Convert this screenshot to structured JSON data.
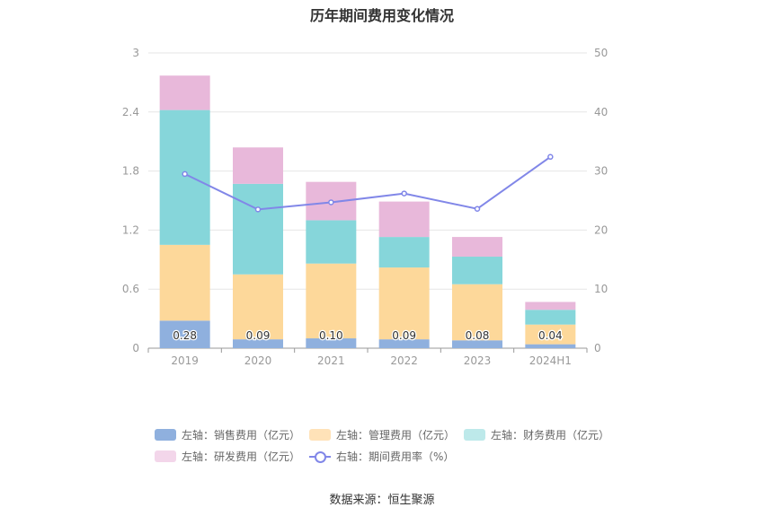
{
  "title": "历年期间费用变化情况",
  "source": "数据来源：恒生聚源",
  "colors": {
    "sales": "#8fb0de",
    "mgmt": "#fdd89a",
    "finance": "#86d6da",
    "rd": "#e8b8da",
    "rate": "#8187e8"
  },
  "legend": [
    {
      "label": "左轴：销售费用（亿元）",
      "color": "#8fb0de",
      "kind": "bar"
    },
    {
      "label": "左轴：管理费用（亿元）",
      "color": "#ffe2b8",
      "kind": "bar"
    },
    {
      "label": "左轴：财务费用（亿元）",
      "color": "#bde9ea",
      "kind": "bar"
    },
    {
      "label": "左轴：研发费用（亿元）",
      "color": "#f3d6ea",
      "kind": "bar"
    },
    {
      "label": "右轴：期间费用率（%）",
      "color": "#8187e8",
      "kind": "line"
    }
  ],
  "chart_data": {
    "type": "bar",
    "stacked": true,
    "categories": [
      "2019",
      "2020",
      "2021",
      "2022",
      "2023",
      "2024H1"
    ],
    "series": [
      {
        "name": "左轴：销售费用（亿元）",
        "axis": "left",
        "values": [
          0.28,
          0.09,
          0.1,
          0.09,
          0.08,
          0.04
        ],
        "labels": [
          "0.28",
          "0.09",
          "0.10",
          "0.09",
          "0.08",
          "0.04"
        ]
      },
      {
        "name": "左轴：管理费用（亿元）",
        "axis": "left",
        "values": [
          0.77,
          0.66,
          0.76,
          0.73,
          0.57,
          0.2
        ]
      },
      {
        "name": "左轴：财务费用（亿元）",
        "axis": "left",
        "values": [
          1.37,
          0.92,
          0.44,
          0.31,
          0.28,
          0.15
        ]
      },
      {
        "name": "左轴：研发费用（亿元）",
        "axis": "left",
        "values": [
          0.35,
          0.37,
          0.39,
          0.36,
          0.2,
          0.08
        ]
      },
      {
        "name": "右轴：期间费用率（%）",
        "axis": "right",
        "type": "line",
        "values": [
          29.5,
          23.5,
          24.7,
          26.2,
          23.6,
          32.4
        ]
      }
    ],
    "yleft": {
      "lim": [
        0,
        3
      ],
      "ticks": [
        "0",
        "0.6",
        "1.2",
        "1.8",
        "2.4",
        "3"
      ]
    },
    "yright": {
      "lim": [
        0,
        50
      ],
      "ticks": [
        "0",
        "10",
        "20",
        "30",
        "40",
        "50"
      ]
    },
    "grid": true,
    "legend_position": "bottom"
  }
}
